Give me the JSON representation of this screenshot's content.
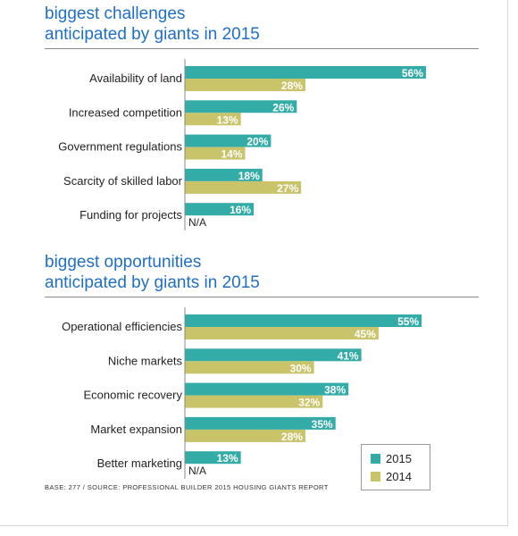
{
  "colors": {
    "y2015": "#33aca8",
    "y2014": "#c9c36a",
    "title": "#1f6fc4"
  },
  "legend": {
    "y2015": "2015",
    "y2014": "2014"
  },
  "footnote": "BASE: 277  /  SOURCE: PROFESSIONAL BUILDER 2015 HOUSING GIANTS REPORT",
  "chart_data": [
    {
      "type": "bar",
      "orientation": "horizontal",
      "title_lines": [
        "biggest challenges",
        "anticipated by giants in 2015"
      ],
      "categories": [
        "Availability of land",
        "Increased competition",
        "Government regulations",
        "Scarcity of skilled labor",
        "Funding for projects"
      ],
      "series": [
        {
          "name": "2015",
          "values": [
            56,
            26,
            20,
            18,
            16
          ],
          "labels": [
            "56%",
            "26%",
            "20%",
            "18%",
            "16%"
          ]
        },
        {
          "name": "2014",
          "values": [
            28,
            13,
            14,
            27,
            null
          ],
          "labels": [
            "28%",
            "13%",
            "14%",
            "27%",
            "N/A"
          ]
        }
      ],
      "unit": "%",
      "xlim": [
        0,
        56
      ]
    },
    {
      "type": "bar",
      "orientation": "horizontal",
      "title_lines": [
        "biggest opportunities",
        "anticipated by giants in 2015"
      ],
      "categories": [
        "Operational efficiencies",
        "Niche markets",
        "Economic recovery",
        "Market expansion",
        "Better marketing"
      ],
      "series": [
        {
          "name": "2015",
          "values": [
            55,
            41,
            38,
            35,
            13
          ],
          "labels": [
            "55%",
            "41%",
            "38%",
            "35%",
            "13%"
          ]
        },
        {
          "name": "2014",
          "values": [
            45,
            30,
            32,
            28,
            null
          ],
          "labels": [
            "45%",
            "30%",
            "32%",
            "28%",
            "N/A"
          ]
        }
      ],
      "unit": "%",
      "xlim": [
        0,
        56
      ]
    }
  ]
}
